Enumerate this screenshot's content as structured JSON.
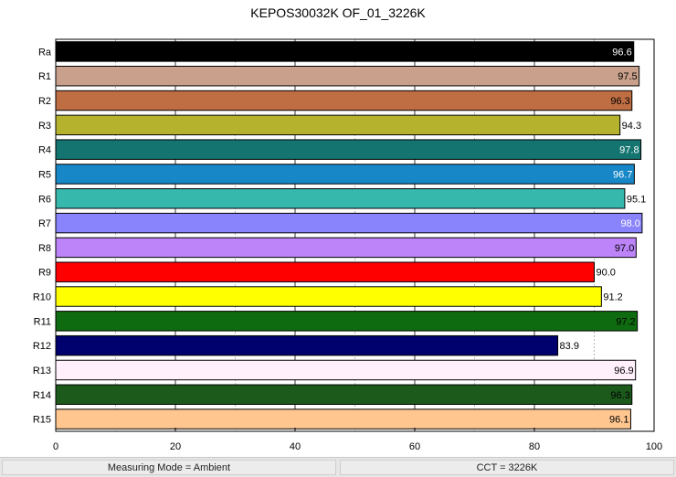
{
  "chart_data": {
    "type": "bar",
    "orientation": "horizontal",
    "title": "KEPOS30032K OF_01_3226K",
    "xlabel": "",
    "ylabel": "",
    "xlim": [
      0,
      100
    ],
    "x_ticks": [
      "0",
      "20",
      "40",
      "60",
      "80",
      "100"
    ],
    "grid": true,
    "categories": [
      "Ra",
      "R1",
      "R2",
      "R3",
      "R4",
      "R5",
      "R6",
      "R7",
      "R8",
      "R9",
      "R10",
      "R11",
      "R12",
      "R13",
      "R14",
      "R15"
    ],
    "values": [
      96.6,
      97.5,
      96.3,
      94.3,
      97.8,
      96.7,
      95.1,
      98.0,
      97.0,
      90.0,
      91.2,
      97.2,
      83.9,
      96.9,
      96.3,
      96.1
    ],
    "value_labels": [
      "96.6",
      "97.5",
      "96.3",
      "94.3",
      "97.8",
      "96.7",
      "95.1",
      "98.0",
      "97.0",
      "90.0",
      "91.2",
      "97.2",
      "83.9",
      "96.9",
      "96.3",
      "96.1"
    ],
    "colors": [
      "#000000",
      "#c9a08b",
      "#bf6e43",
      "#b5b22e",
      "#137470",
      "#1787c7",
      "#37b8ad",
      "#8a84fc",
      "#bc84f8",
      "#ff0000",
      "#ffff00",
      "#0f6b0f",
      "#00006e",
      "#fff0fc",
      "#1c5a1c",
      "#ffc690"
    ],
    "label_colors": [
      "#ffffff",
      "#000000",
      "#000000",
      "#000000",
      "#ffffff",
      "#ffffff",
      "#000000",
      "#ffffff",
      "#000000",
      "#000000",
      "#000000",
      "#000000",
      "#000000",
      "#000000",
      "#000000",
      "#000000"
    ]
  },
  "footer": {
    "left": "Measuring Mode = Ambient",
    "right": "CCT = 3226K"
  }
}
